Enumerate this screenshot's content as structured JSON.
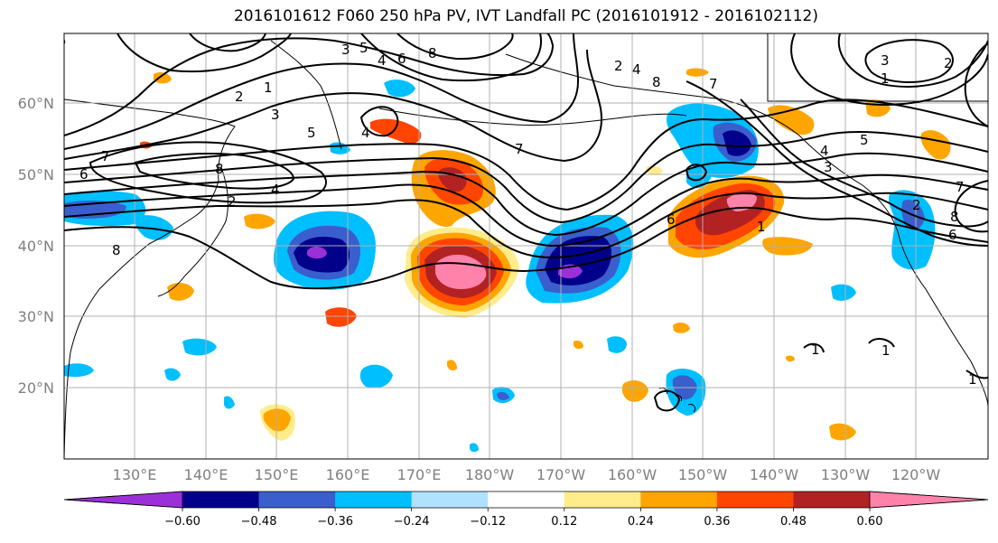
{
  "title": "2016101612 F060 250 hPa PV, IVT Landfall PC (2016101912 - 2016102112)",
  "map": {
    "lat_labels": [
      "60°N",
      "50°N",
      "40°N",
      "30°N",
      "20°N"
    ],
    "lon_labels": [
      "130°E",
      "140°E",
      "150°E",
      "160°E",
      "170°E",
      "180°W",
      "170°W",
      "160°W",
      "150°W",
      "140°W",
      "130°W",
      "120°W"
    ],
    "contour_labels": [
      "1",
      "2",
      "3",
      "4",
      "5",
      "6",
      "7",
      "8"
    ]
  },
  "colorbar": {
    "colors": [
      "#9b30d9",
      "#00008b",
      "#3a5fcd",
      "#00bfff",
      "#b0e2ff",
      "#ffffff",
      "#ffec8b",
      "#ffa500",
      "#ff4500",
      "#b22222",
      "#ff82ab"
    ],
    "tick_labels": [
      "−0.60",
      "−0.48",
      "−0.36",
      "−0.24",
      "−0.12",
      "0.12",
      "0.24",
      "0.36",
      "0.48",
      "0.60"
    ]
  }
}
